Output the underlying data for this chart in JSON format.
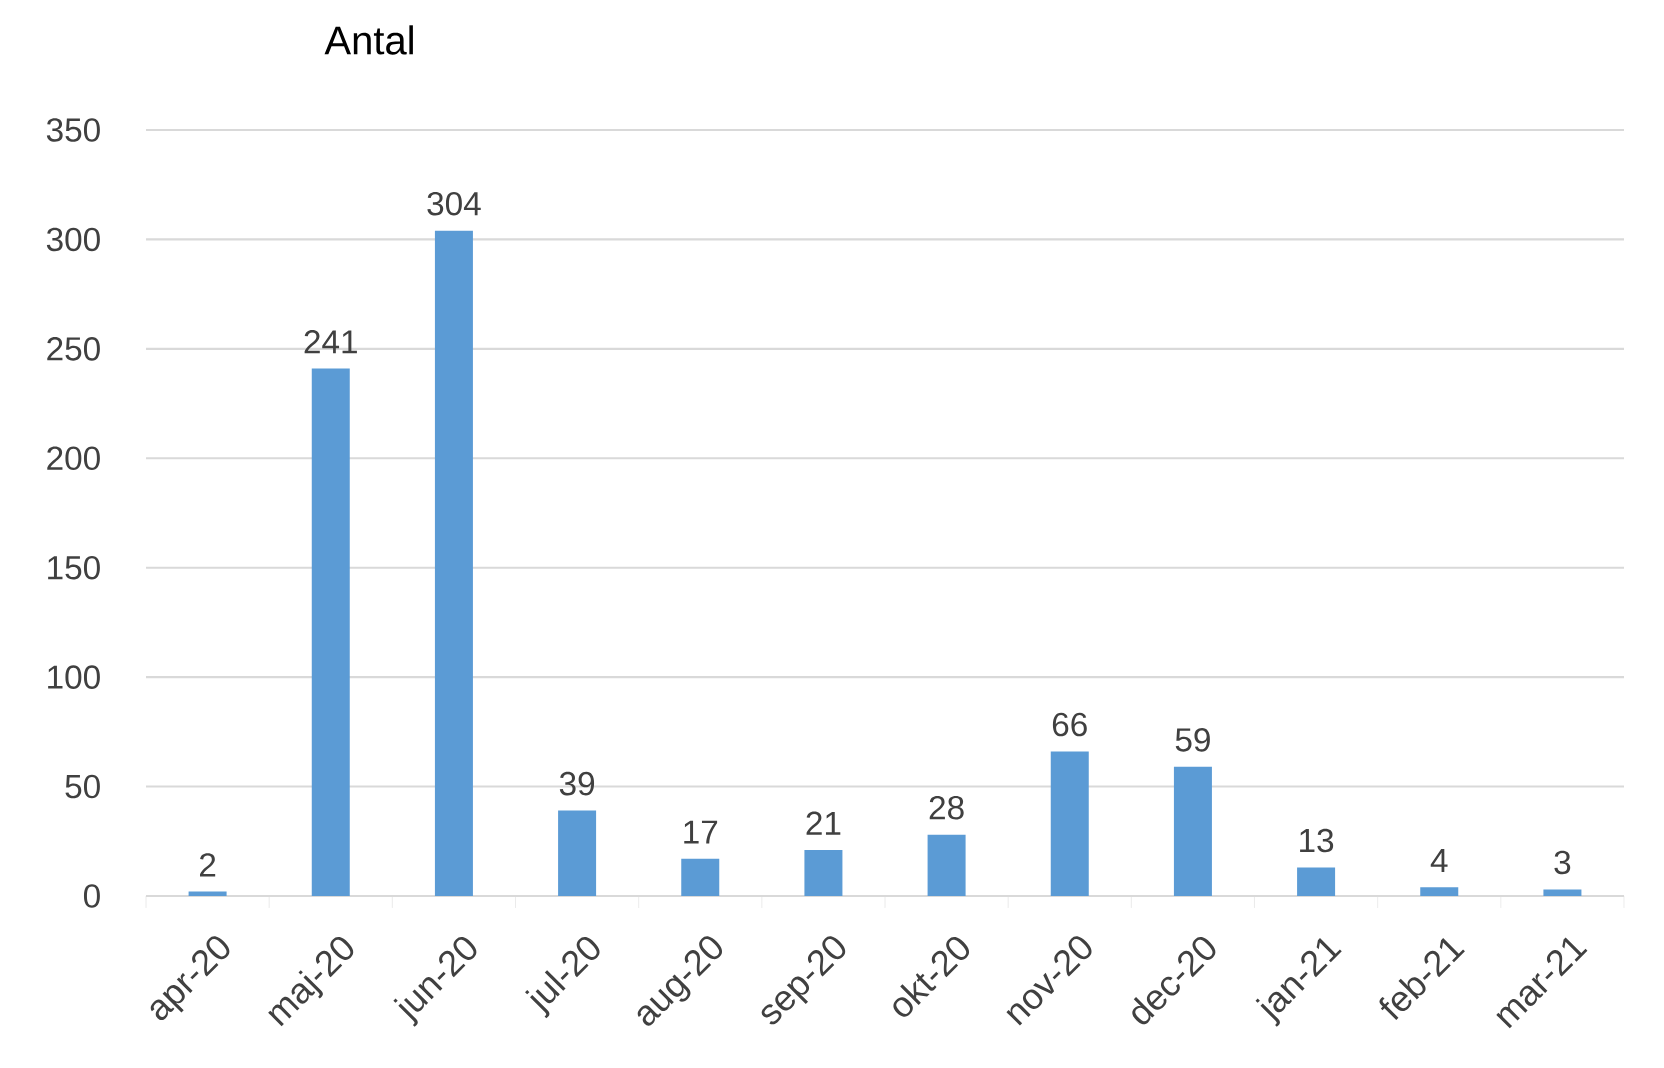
{
  "chart_data": {
    "type": "bar",
    "title": "Antal",
    "categories": [
      "apr-20",
      "maj-20",
      "jun-20",
      "jul-20",
      "aug-20",
      "sep-20",
      "okt-20",
      "nov-20",
      "dec-20",
      "jan-21",
      "feb-21",
      "mar-21"
    ],
    "values": [
      2,
      241,
      304,
      39,
      17,
      21,
      28,
      66,
      59,
      13,
      4,
      3
    ],
    "color": "#5b9bd5",
    "ylim": [
      0,
      350
    ],
    "yticks": [
      0,
      50,
      100,
      150,
      200,
      250,
      300,
      350
    ],
    "grid": "y",
    "data_labels": true
  }
}
